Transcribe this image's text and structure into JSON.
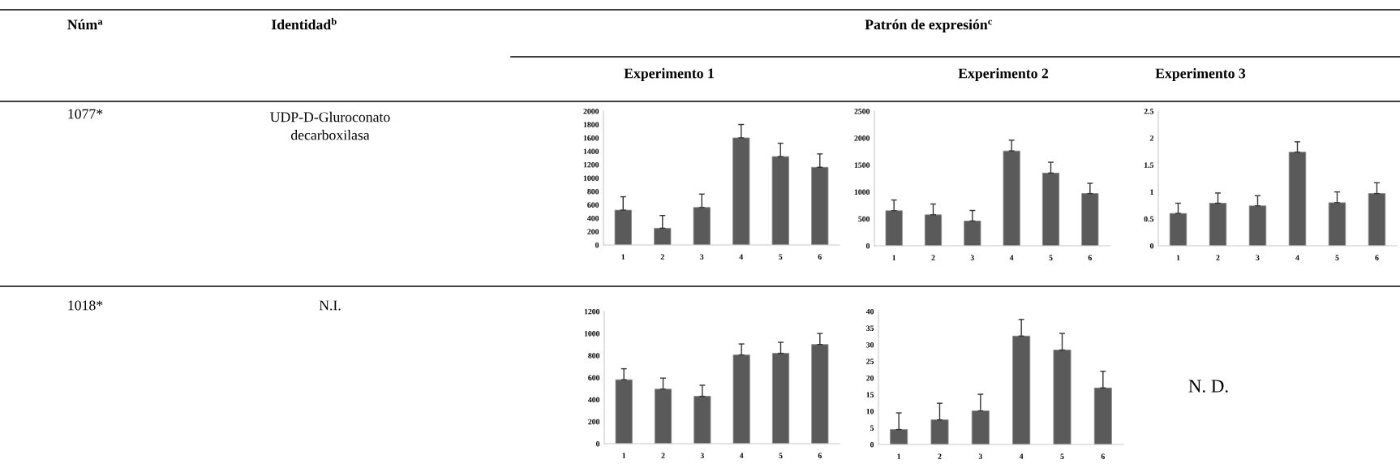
{
  "chart_data": [
    {
      "type": "other",
      "annotations": [
        "Núm$^{a}$",
        "Identidad$^{b}$",
        "Patrón de expresión$^{c}$",
        "Experimento 1",
        "Experimento 2",
        "Experimento 3",
        "1077*",
        "UDP-D-Gluroconato\ndecarboxilasa",
        "1018*",
        "N.I.",
        "N. D."
      ]
    },
    {
      "type": "bar",
      "categories": [
        "1",
        "2",
        "3",
        "4",
        "5",
        "6"
      ],
      "values": [
        520,
        250,
        560,
        1600,
        1320,
        1160
      ],
      "errors": [
        [
          520,
          720
        ],
        [
          250,
          440
        ],
        [
          560,
          760
        ],
        [
          1600,
          1800
        ],
        [
          1320,
          1520
        ],
        [
          1160,
          1360
        ]
      ],
      "color": "#5a5a5a",
      "ylim": [
        0,
        2000
      ],
      "yticks": [
        0,
        200,
        400,
        600,
        800,
        1000,
        1200,
        1400,
        1600,
        1800,
        2000
      ]
    },
    {
      "type": "bar",
      "categories": [
        "1",
        "2",
        "3",
        "4",
        "5",
        "6"
      ],
      "values": [
        650,
        575,
        460,
        1760,
        1350,
        970
      ],
      "errors": [
        [
          650,
          850
        ],
        [
          575,
          775
        ],
        [
          460,
          655
        ],
        [
          1760,
          1960
        ],
        [
          1350,
          1550
        ],
        [
          970,
          1160
        ]
      ],
      "color": "#5a5a5a",
      "ylim": [
        0,
        2500
      ],
      "yticks": [
        0,
        500,
        1000,
        1500,
        2000,
        2500
      ]
    },
    {
      "type": "bar",
      "categories": [
        "1",
        "2",
        "3",
        "4",
        "5",
        "6"
      ],
      "values": [
        0.6,
        0.79,
        0.74,
        1.74,
        0.8,
        0.97
      ],
      "errors": [
        [
          0.6,
          0.79
        ],
        [
          0.79,
          0.98
        ],
        [
          0.74,
          0.93
        ],
        [
          1.74,
          1.93
        ],
        [
          0.8,
          1.0
        ],
        [
          0.97,
          1.17
        ]
      ],
      "color": "#5a5a5a",
      "ylim": [
        0,
        2.5
      ],
      "yticks": [
        0,
        0.5,
        1,
        1.5,
        2,
        2.5
      ]
    },
    {
      "type": "bar",
      "categories": [
        "1",
        "2",
        "3",
        "4",
        "5",
        "6"
      ],
      "values": [
        580,
        495,
        430,
        805,
        820,
        900
      ],
      "errors": [
        [
          580,
          680
        ],
        [
          495,
          595
        ],
        [
          430,
          530
        ],
        [
          805,
          905
        ],
        [
          820,
          920
        ],
        [
          900,
          1000
        ]
      ],
      "color": "#5a5a5a",
      "ylim": [
        0,
        1200
      ],
      "yticks": [
        0,
        200,
        400,
        600,
        800,
        1000,
        1200
      ]
    },
    {
      "type": "bar",
      "categories": [
        "1",
        "2",
        "3",
        "4",
        "5",
        "6"
      ],
      "values": [
        4.5,
        7.4,
        10.1,
        32.6,
        28.4,
        17
      ],
      "errors": [
        [
          4.5,
          9.5
        ],
        [
          7.4,
          12.4
        ],
        [
          10.1,
          15.1
        ],
        [
          32.6,
          37.6
        ],
        [
          28.4,
          33.4
        ],
        [
          17,
          22
        ]
      ],
      "color": "#5a5a5a",
      "ylim": [
        0,
        40
      ],
      "yticks": [
        0,
        5,
        10,
        15,
        20,
        25,
        30,
        35,
        40
      ]
    }
  ]
}
